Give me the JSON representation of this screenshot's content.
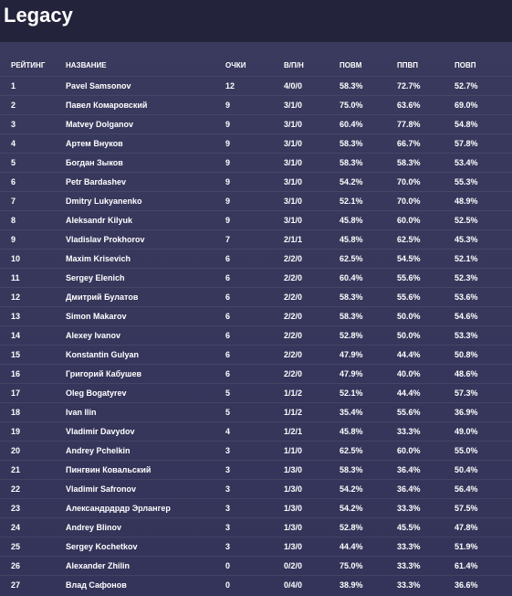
{
  "title": "Legacy",
  "columns": {
    "rank": "РЕЙТИНГ",
    "name": "НАЗВАНИЕ",
    "points": "ОЧКИ",
    "record": "В/П/Н",
    "omw": "ПОВМ",
    "gw": "ППВП",
    "ogw": "ПОВП"
  },
  "rows": [
    {
      "rank": "1",
      "name": "Pavel Samsonov",
      "points": "12",
      "record": "4/0/0",
      "omw": "58.3%",
      "gw": "72.7%",
      "ogw": "52.7%"
    },
    {
      "rank": "2",
      "name": "Павел Комаровский",
      "points": "9",
      "record": "3/1/0",
      "omw": "75.0%",
      "gw": "63.6%",
      "ogw": "69.0%"
    },
    {
      "rank": "3",
      "name": "Matvey Dolganov",
      "points": "9",
      "record": "3/1/0",
      "omw": "60.4%",
      "gw": "77.8%",
      "ogw": "54.8%"
    },
    {
      "rank": "4",
      "name": "Артем Внуков",
      "points": "9",
      "record": "3/1/0",
      "omw": "58.3%",
      "gw": "66.7%",
      "ogw": "57.8%"
    },
    {
      "rank": "5",
      "name": "Богдан Зыков",
      "points": "9",
      "record": "3/1/0",
      "omw": "58.3%",
      "gw": "58.3%",
      "ogw": "53.4%"
    },
    {
      "rank": "6",
      "name": "Petr Bardashev",
      "points": "9",
      "record": "3/1/0",
      "omw": "54.2%",
      "gw": "70.0%",
      "ogw": "55.3%"
    },
    {
      "rank": "7",
      "name": "Dmitry Lukyanenko",
      "points": "9",
      "record": "3/1/0",
      "omw": "52.1%",
      "gw": "70.0%",
      "ogw": "48.9%"
    },
    {
      "rank": "8",
      "name": "Aleksandr Kilyuk",
      "points": "9",
      "record": "3/1/0",
      "omw": "45.8%",
      "gw": "60.0%",
      "ogw": "52.5%"
    },
    {
      "rank": "9",
      "name": "Vladislav Prokhorov",
      "points": "7",
      "record": "2/1/1",
      "omw": "45.8%",
      "gw": "62.5%",
      "ogw": "45.3%"
    },
    {
      "rank": "10",
      "name": "Maxim Krisevich",
      "points": "6",
      "record": "2/2/0",
      "omw": "62.5%",
      "gw": "54.5%",
      "ogw": "52.1%"
    },
    {
      "rank": "11",
      "name": "Sergey Elenich",
      "points": "6",
      "record": "2/2/0",
      "omw": "60.4%",
      "gw": "55.6%",
      "ogw": "52.3%"
    },
    {
      "rank": "12",
      "name": "Дмитрий Булатов",
      "points": "6",
      "record": "2/2/0",
      "omw": "58.3%",
      "gw": "55.6%",
      "ogw": "53.6%"
    },
    {
      "rank": "13",
      "name": "Simon Makarov",
      "points": "6",
      "record": "2/2/0",
      "omw": "58.3%",
      "gw": "50.0%",
      "ogw": "54.6%"
    },
    {
      "rank": "14",
      "name": "Alexey Ivanov",
      "points": "6",
      "record": "2/2/0",
      "omw": "52.8%",
      "gw": "50.0%",
      "ogw": "53.3%"
    },
    {
      "rank": "15",
      "name": "Konstantin Gulyan",
      "points": "6",
      "record": "2/2/0",
      "omw": "47.9%",
      "gw": "44.4%",
      "ogw": "50.8%"
    },
    {
      "rank": "16",
      "name": "Григорий Кабушев",
      "points": "6",
      "record": "2/2/0",
      "omw": "47.9%",
      "gw": "40.0%",
      "ogw": "48.6%"
    },
    {
      "rank": "17",
      "name": "Oleg Bogatyrev",
      "points": "5",
      "record": "1/1/2",
      "omw": "52.1%",
      "gw": "44.4%",
      "ogw": "57.3%"
    },
    {
      "rank": "18",
      "name": "Ivan Ilin",
      "points": "5",
      "record": "1/1/2",
      "omw": "35.4%",
      "gw": "55.6%",
      "ogw": "36.9%"
    },
    {
      "rank": "19",
      "name": "Vladimir Davydov",
      "points": "4",
      "record": "1/2/1",
      "omw": "45.8%",
      "gw": "33.3%",
      "ogw": "49.0%"
    },
    {
      "rank": "20",
      "name": "Andrey Pchelkin",
      "points": "3",
      "record": "1/1/0",
      "omw": "62.5%",
      "gw": "60.0%",
      "ogw": "55.0%"
    },
    {
      "rank": "21",
      "name": "Пингвин Ковальский",
      "points": "3",
      "record": "1/3/0",
      "omw": "58.3%",
      "gw": "36.4%",
      "ogw": "50.4%"
    },
    {
      "rank": "22",
      "name": "Vladimir Safronov",
      "points": "3",
      "record": "1/3/0",
      "omw": "54.2%",
      "gw": "36.4%",
      "ogw": "56.4%"
    },
    {
      "rank": "23",
      "name": "Александрдрдр Эрлангер",
      "points": "3",
      "record": "1/3/0",
      "omw": "54.2%",
      "gw": "33.3%",
      "ogw": "57.5%"
    },
    {
      "rank": "24",
      "name": "Andrey Blinov",
      "points": "3",
      "record": "1/3/0",
      "omw": "52.8%",
      "gw": "45.5%",
      "ogw": "47.8%"
    },
    {
      "rank": "25",
      "name": "Sergey Kochetkov",
      "points": "3",
      "record": "1/3/0",
      "omw": "44.4%",
      "gw": "33.3%",
      "ogw": "51.9%"
    },
    {
      "rank": "26",
      "name": "Alexander Zhilin",
      "points": "0",
      "record": "0/2/0",
      "omw": "75.0%",
      "gw": "33.3%",
      "ogw": "61.4%"
    },
    {
      "rank": "27",
      "name": "Влад Сафонов",
      "points": "0",
      "record": "0/4/0",
      "omw": "38.9%",
      "gw": "33.3%",
      "ogw": "36.6%"
    }
  ]
}
